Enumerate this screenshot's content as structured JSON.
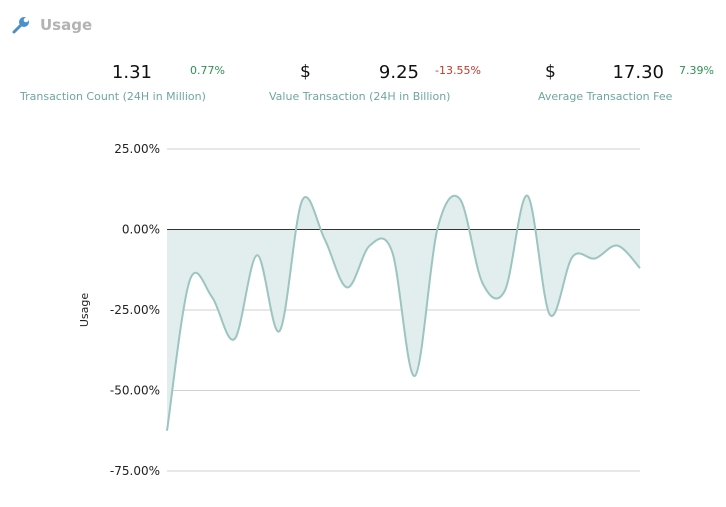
{
  "header": {
    "title": "Usage",
    "icon": "wrench-icon"
  },
  "stats": [
    {
      "currency": "",
      "value": "1.31",
      "change": "0.77%",
      "change_dir": "up",
      "label": "Transaction Count (24H in Million)"
    },
    {
      "currency": "$",
      "value": "9.25",
      "change": "-13.55%",
      "change_dir": "down",
      "label": "Value Transaction (24H in Billion)"
    },
    {
      "currency": "$",
      "value": "17.30",
      "change": "7.39%",
      "change_dir": "up",
      "label": "Average Transaction Fee"
    }
  ],
  "colors": {
    "line": "#9cc5bf",
    "fill": "#e2eded",
    "positive": "#2f8f55",
    "negative": "#c0392b",
    "label": "#6fa7a0"
  },
  "chart_data": {
    "type": "area",
    "ylabel": "Usage",
    "ylim": [
      -75,
      25
    ],
    "yticks": [
      25,
      0,
      -25,
      -50,
      -75
    ],
    "ytick_labels": [
      "25.00%",
      "0.00%",
      "-25.00%",
      "-50.00%",
      "-75.00%"
    ],
    "grid": true,
    "series": [
      {
        "values": [
          -62.5,
          -16,
          -21,
          -34,
          -8,
          -31.5,
          9,
          -3,
          -18,
          -5,
          -7,
          -45.5,
          0,
          9.5,
          -16.5,
          -19,
          10.5,
          -26.5,
          -8.5,
          -9,
          -5,
          -12
        ]
      }
    ]
  }
}
